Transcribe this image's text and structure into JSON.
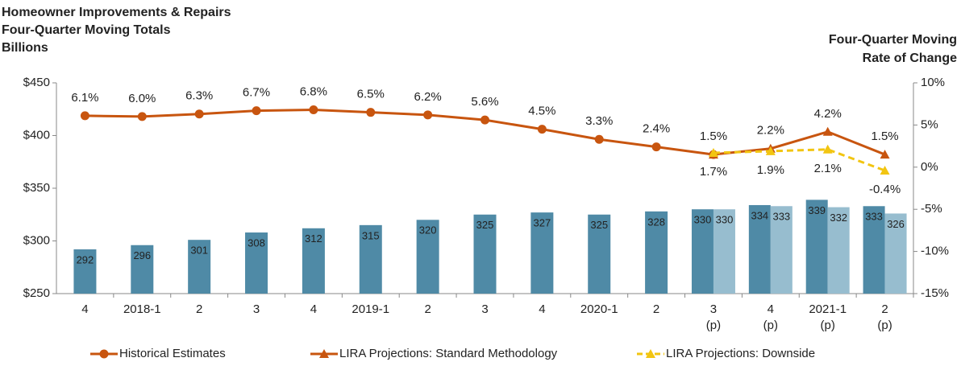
{
  "chart_data": {
    "type": "bar-line",
    "title": [
      "Homeowner Improvements & Repairs",
      "Four-Quarter Moving Totals",
      "Billions"
    ],
    "y2_title": [
      "Four-Quarter Moving",
      "Rate of Change"
    ],
    "categories": [
      "4",
      "2018-1",
      "2",
      "3",
      "4",
      "2019-1",
      "2",
      "3",
      "4",
      "2020-1",
      "2",
      [
        "3",
        "(p)"
      ],
      [
        "4",
        "(p)"
      ],
      [
        "2021-1",
        "(p)"
      ],
      [
        "2",
        "(p)"
      ]
    ],
    "ylim": [
      250,
      450
    ],
    "yticks": [
      {
        "value": 250,
        "label": "$250"
      },
      {
        "value": 300,
        "label": "$300"
      },
      {
        "value": 350,
        "label": "$350"
      },
      {
        "value": 400,
        "label": "$400"
      },
      {
        "value": 450,
        "label": "$450"
      }
    ],
    "y2lim": [
      -15,
      10
    ],
    "y2ticks": [
      {
        "value": -15,
        "label": "-15%"
      },
      {
        "value": -10,
        "label": "-10%"
      },
      {
        "value": -5,
        "label": "-5%"
      },
      {
        "value": 0,
        "label": "0%"
      },
      {
        "value": 5,
        "label": "5%"
      },
      {
        "value": 10,
        "label": "10%"
      }
    ],
    "bars": [
      {
        "color": "#4f8aa6",
        "values": [
          292,
          296,
          301,
          308,
          312,
          315,
          320,
          325,
          327,
          325,
          328,
          330,
          334,
          339,
          333
        ]
      },
      {
        "color": "#97bdcf",
        "values": [
          null,
          null,
          null,
          null,
          null,
          null,
          null,
          null,
          null,
          null,
          null,
          330,
          333,
          332,
          326
        ]
      }
    ],
    "series": [
      {
        "name": "Historical Estimates",
        "color": "#c8550f",
        "marker": "circle",
        "axis": "y2",
        "values": [
          6.1,
          6.0,
          6.3,
          6.7,
          6.8,
          6.5,
          6.2,
          5.6,
          4.5,
          3.3,
          2.4,
          1.5,
          null,
          null,
          null
        ],
        "value_labels": [
          "6.1%",
          "6.0%",
          "6.3%",
          "6.7%",
          "6.8%",
          "6.5%",
          "6.2%",
          "5.6%",
          "4.5%",
          "3.3%",
          "2.4%",
          "1.5%",
          null,
          null,
          null
        ]
      },
      {
        "name": "LIRA Projections: Standard Methodology",
        "color": "#c8550f",
        "marker": "triangle",
        "axis": "y2",
        "values": [
          null,
          null,
          null,
          null,
          null,
          null,
          null,
          null,
          null,
          null,
          null,
          1.5,
          2.2,
          4.2,
          1.5
        ],
        "value_labels": [
          null,
          null,
          null,
          null,
          null,
          null,
          null,
          null,
          null,
          null,
          null,
          null,
          "2.2%",
          "4.2%",
          "1.5%"
        ]
      },
      {
        "name": "LIRA Projections: Downside",
        "color": "#f2c511",
        "marker": "triangle",
        "dashed": true,
        "axis": "y2",
        "values": [
          null,
          null,
          null,
          null,
          null,
          null,
          null,
          null,
          null,
          null,
          null,
          1.7,
          1.9,
          2.1,
          -0.4
        ],
        "value_labels": [
          null,
          null,
          null,
          null,
          null,
          null,
          null,
          null,
          null,
          null,
          null,
          "1.7%",
          "1.9%",
          "2.1%",
          "-0.4%"
        ]
      }
    ]
  }
}
